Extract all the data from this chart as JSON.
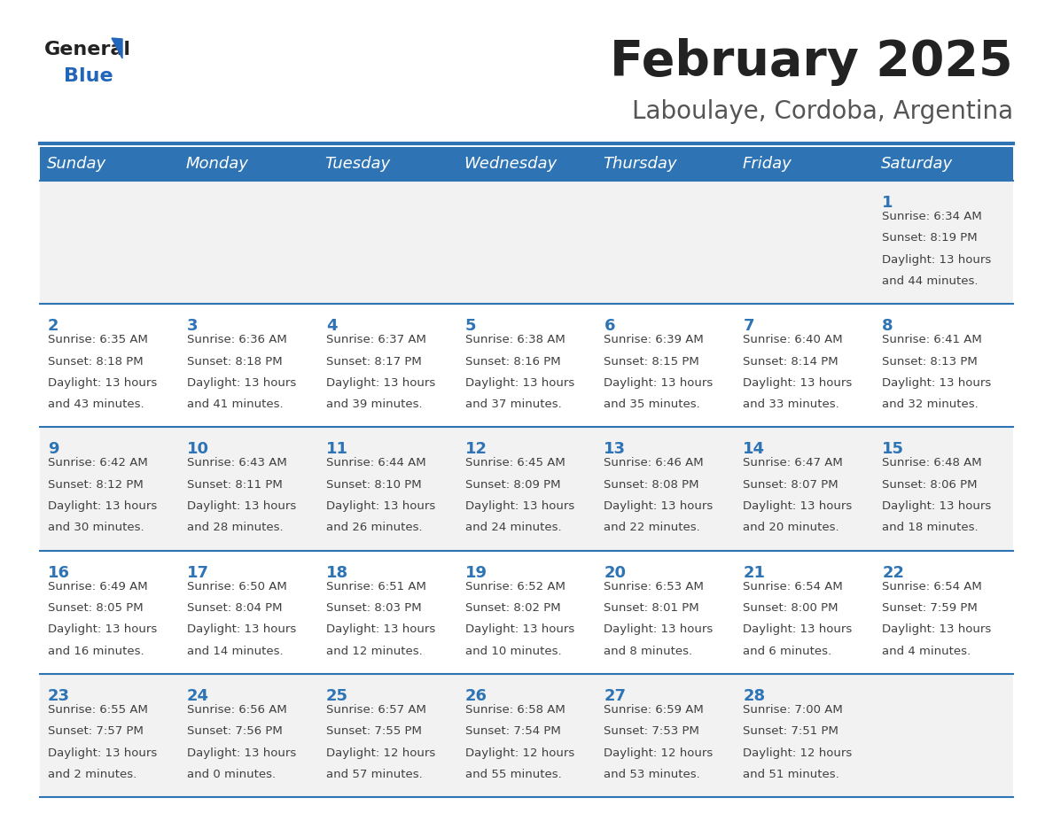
{
  "title": "February 2025",
  "subtitle": "Laboulaye, Cordoba, Argentina",
  "header_bg": "#2E74B5",
  "header_text_color": "#ffffff",
  "day_names": [
    "Sunday",
    "Monday",
    "Tuesday",
    "Wednesday",
    "Thursday",
    "Friday",
    "Saturday"
  ],
  "row_bg_light": "#f2f2f2",
  "row_bg_white": "#ffffff",
  "cell_border_color": "#2E74B5",
  "day_number_color": "#2E74B5",
  "info_text_color": "#404040",
  "calendar_data": [
    [
      {
        "day": null,
        "sunrise": null,
        "sunset": null,
        "daylight": null
      },
      {
        "day": null,
        "sunrise": null,
        "sunset": null,
        "daylight": null
      },
      {
        "day": null,
        "sunrise": null,
        "sunset": null,
        "daylight": null
      },
      {
        "day": null,
        "sunrise": null,
        "sunset": null,
        "daylight": null
      },
      {
        "day": null,
        "sunrise": null,
        "sunset": null,
        "daylight": null
      },
      {
        "day": null,
        "sunrise": null,
        "sunset": null,
        "daylight": null
      },
      {
        "day": 1,
        "sunrise": "6:34 AM",
        "sunset": "8:19 PM",
        "daylight": "13 hours\nand 44 minutes."
      }
    ],
    [
      {
        "day": 2,
        "sunrise": "6:35 AM",
        "sunset": "8:18 PM",
        "daylight": "13 hours\nand 43 minutes."
      },
      {
        "day": 3,
        "sunrise": "6:36 AM",
        "sunset": "8:18 PM",
        "daylight": "13 hours\nand 41 minutes."
      },
      {
        "day": 4,
        "sunrise": "6:37 AM",
        "sunset": "8:17 PM",
        "daylight": "13 hours\nand 39 minutes."
      },
      {
        "day": 5,
        "sunrise": "6:38 AM",
        "sunset": "8:16 PM",
        "daylight": "13 hours\nand 37 minutes."
      },
      {
        "day": 6,
        "sunrise": "6:39 AM",
        "sunset": "8:15 PM",
        "daylight": "13 hours\nand 35 minutes."
      },
      {
        "day": 7,
        "sunrise": "6:40 AM",
        "sunset": "8:14 PM",
        "daylight": "13 hours\nand 33 minutes."
      },
      {
        "day": 8,
        "sunrise": "6:41 AM",
        "sunset": "8:13 PM",
        "daylight": "13 hours\nand 32 minutes."
      }
    ],
    [
      {
        "day": 9,
        "sunrise": "6:42 AM",
        "sunset": "8:12 PM",
        "daylight": "13 hours\nand 30 minutes."
      },
      {
        "day": 10,
        "sunrise": "6:43 AM",
        "sunset": "8:11 PM",
        "daylight": "13 hours\nand 28 minutes."
      },
      {
        "day": 11,
        "sunrise": "6:44 AM",
        "sunset": "8:10 PM",
        "daylight": "13 hours\nand 26 minutes."
      },
      {
        "day": 12,
        "sunrise": "6:45 AM",
        "sunset": "8:09 PM",
        "daylight": "13 hours\nand 24 minutes."
      },
      {
        "day": 13,
        "sunrise": "6:46 AM",
        "sunset": "8:08 PM",
        "daylight": "13 hours\nand 22 minutes."
      },
      {
        "day": 14,
        "sunrise": "6:47 AM",
        "sunset": "8:07 PM",
        "daylight": "13 hours\nand 20 minutes."
      },
      {
        "day": 15,
        "sunrise": "6:48 AM",
        "sunset": "8:06 PM",
        "daylight": "13 hours\nand 18 minutes."
      }
    ],
    [
      {
        "day": 16,
        "sunrise": "6:49 AM",
        "sunset": "8:05 PM",
        "daylight": "13 hours\nand 16 minutes."
      },
      {
        "day": 17,
        "sunrise": "6:50 AM",
        "sunset": "8:04 PM",
        "daylight": "13 hours\nand 14 minutes."
      },
      {
        "day": 18,
        "sunrise": "6:51 AM",
        "sunset": "8:03 PM",
        "daylight": "13 hours\nand 12 minutes."
      },
      {
        "day": 19,
        "sunrise": "6:52 AM",
        "sunset": "8:02 PM",
        "daylight": "13 hours\nand 10 minutes."
      },
      {
        "day": 20,
        "sunrise": "6:53 AM",
        "sunset": "8:01 PM",
        "daylight": "13 hours\nand 8 minutes."
      },
      {
        "day": 21,
        "sunrise": "6:54 AM",
        "sunset": "8:00 PM",
        "daylight": "13 hours\nand 6 minutes."
      },
      {
        "day": 22,
        "sunrise": "6:54 AM",
        "sunset": "7:59 PM",
        "daylight": "13 hours\nand 4 minutes."
      }
    ],
    [
      {
        "day": 23,
        "sunrise": "6:55 AM",
        "sunset": "7:57 PM",
        "daylight": "13 hours\nand 2 minutes."
      },
      {
        "day": 24,
        "sunrise": "6:56 AM",
        "sunset": "7:56 PM",
        "daylight": "13 hours\nand 0 minutes."
      },
      {
        "day": 25,
        "sunrise": "6:57 AM",
        "sunset": "7:55 PM",
        "daylight": "12 hours\nand 57 minutes."
      },
      {
        "day": 26,
        "sunrise": "6:58 AM",
        "sunset": "7:54 PM",
        "daylight": "12 hours\nand 55 minutes."
      },
      {
        "day": 27,
        "sunrise": "6:59 AM",
        "sunset": "7:53 PM",
        "daylight": "12 hours\nand 53 minutes."
      },
      {
        "day": 28,
        "sunrise": "7:00 AM",
        "sunset": "7:51 PM",
        "daylight": "12 hours\nand 51 minutes."
      },
      {
        "day": null,
        "sunrise": null,
        "sunset": null,
        "daylight": null
      }
    ]
  ],
  "figsize": [
    11.88,
    9.18
  ],
  "dpi": 100
}
